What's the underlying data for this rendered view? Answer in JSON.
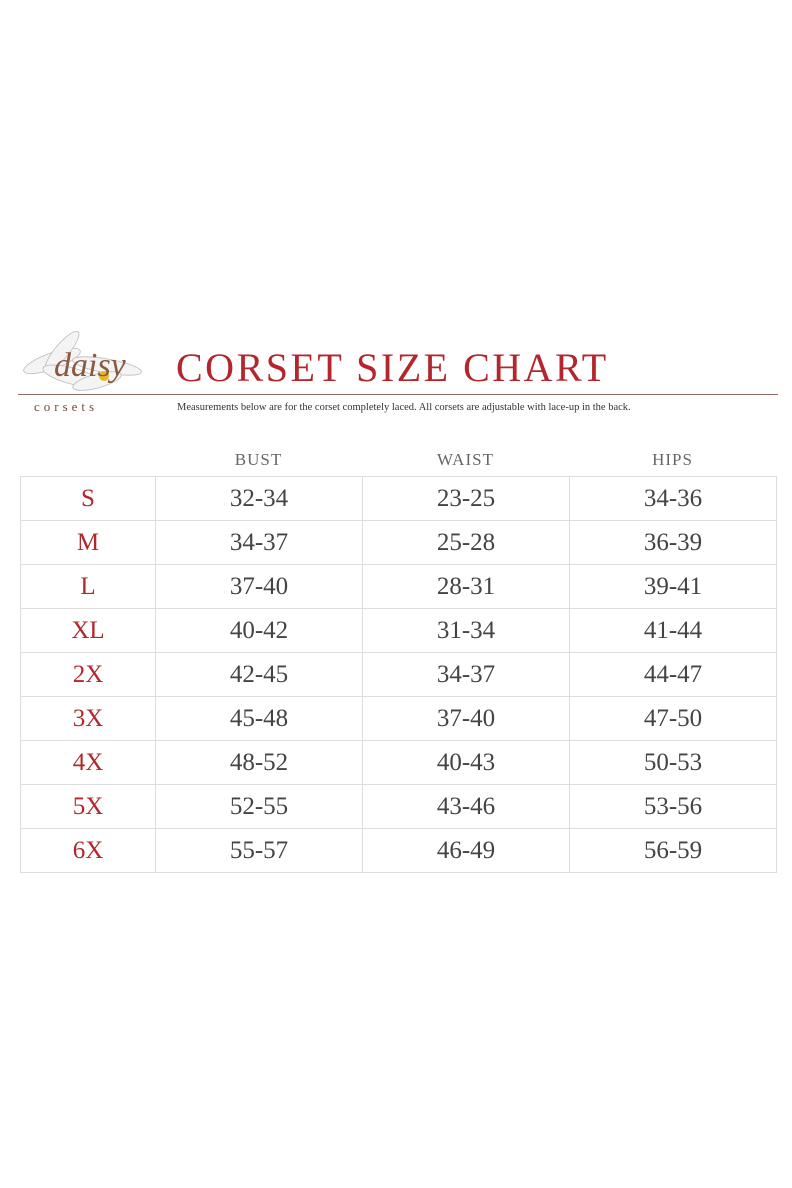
{
  "logo": {
    "script_text": "daisy",
    "subtext": "corsets"
  },
  "title": "CORSET SIZE CHART",
  "subtitle": "Measurements below are for the corset completely laced.  All corsets are adjustable with lace-up in the back.",
  "colors": {
    "accent": "#b3262c",
    "text": "#444444",
    "border": "#dddddd"
  },
  "table": {
    "headers": [
      "BUST",
      "WAIST",
      "HIPS"
    ],
    "rows": [
      {
        "size": "S",
        "bust": "32-34",
        "waist": "23-25",
        "hips": "34-36"
      },
      {
        "size": "M",
        "bust": "34-37",
        "waist": "25-28",
        "hips": "36-39"
      },
      {
        "size": "L",
        "bust": "37-40",
        "waist": "28-31",
        "hips": "39-41"
      },
      {
        "size": "XL",
        "bust": "40-42",
        "waist": "31-34",
        "hips": "41-44"
      },
      {
        "size": "2X",
        "bust": "42-45",
        "waist": "34-37",
        "hips": "44-47"
      },
      {
        "size": "3X",
        "bust": "45-48",
        "waist": "37-40",
        "hips": "47-50"
      },
      {
        "size": "4X",
        "bust": "48-52",
        "waist": "40-43",
        "hips": "50-53"
      },
      {
        "size": "5X",
        "bust": "52-55",
        "waist": "43-46",
        "hips": "53-56"
      },
      {
        "size": "6X",
        "bust": "55-57",
        "waist": "46-49",
        "hips": "56-59"
      }
    ]
  }
}
